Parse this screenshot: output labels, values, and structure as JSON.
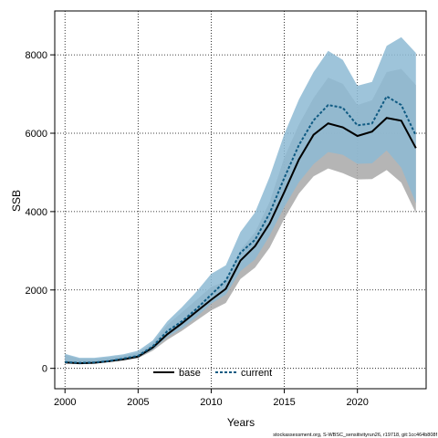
{
  "chart_data": {
    "type": "line",
    "xlabel": "Years",
    "ylabel": "SSB",
    "xlim": [
      1999.3,
      2024.7
    ],
    "ylim": [
      -520,
      9120
    ],
    "x_ticks": [
      "2000",
      "2005",
      "2010",
      "2015",
      "2020"
    ],
    "y_ticks": [
      "0",
      "2000",
      "4000",
      "6000",
      "8000"
    ],
    "grid": true,
    "legend_position": "bottom",
    "footnote": "stockassessment.org, S-WBSC_sensitivityrun26, r19718, git:1cc464b808f",
    "x": [
      2000,
      2001,
      2002,
      2003,
      2004,
      2005,
      2006,
      2007,
      2008,
      2009,
      2010,
      2011,
      2012,
      2013,
      2014,
      2015,
      2016,
      2017,
      2018,
      2019,
      2020,
      2021,
      2022,
      2023,
      2024
    ],
    "series": [
      {
        "name": "base",
        "color": "#000000",
        "values": [
          150,
          130,
          140,
          180,
          230,
          300,
          530,
          870,
          1150,
          1450,
          1750,
          2030,
          2750,
          3120,
          3700,
          4500,
          5330,
          5960,
          6250,
          6150,
          5930,
          6040,
          6390,
          6320,
          5620
        ],
        "low": [
          130,
          120,
          125,
          160,
          200,
          260,
          450,
          730,
          960,
          1220,
          1480,
          1670,
          2280,
          2570,
          3080,
          3820,
          4460,
          4900,
          5100,
          4980,
          4820,
          4830,
          5060,
          4740,
          3960
        ],
        "high": [
          350,
          240,
          240,
          280,
          330,
          400,
          650,
          1110,
          1430,
          1750,
          2080,
          2220,
          3020,
          3470,
          4250,
          5380,
          6220,
          6900,
          7420,
          7260,
          6720,
          6840,
          7560,
          7640,
          7230
        ],
        "band_color": "#a8a8a8"
      },
      {
        "name": "current",
        "color": "#0f5a82",
        "values": [
          160,
          140,
          150,
          185,
          250,
          320,
          560,
          950,
          1200,
          1520,
          1880,
          2240,
          2950,
          3280,
          3960,
          4860,
          5700,
          6330,
          6720,
          6650,
          6200,
          6250,
          6940,
          6720,
          5940
        ],
        "low": [
          140,
          125,
          130,
          165,
          210,
          280,
          480,
          800,
          1020,
          1310,
          1650,
          1880,
          2480,
          2780,
          3390,
          4120,
          4750,
          5210,
          5520,
          5450,
          5220,
          5230,
          5560,
          5120,
          4220
        ],
        "high": [
          370,
          270,
          270,
          310,
          360,
          450,
          710,
          1200,
          1560,
          1960,
          2410,
          2630,
          3480,
          3980,
          4890,
          5980,
          6860,
          7560,
          8100,
          7870,
          7210,
          7310,
          8230,
          8450,
          8050
        ],
        "band_color": "#8dbad3"
      }
    ]
  }
}
